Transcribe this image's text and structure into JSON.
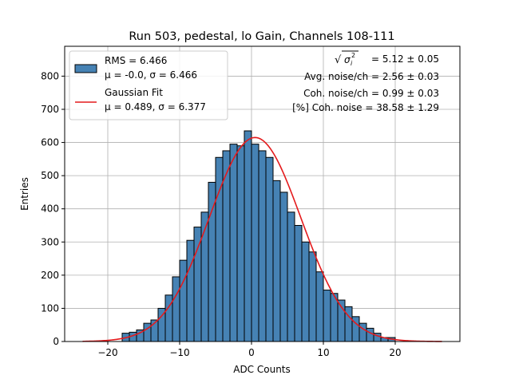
{
  "chart_data": {
    "type": "bar",
    "title": "Run 503, pedestal, lo Gain, Channels 108-111",
    "xlabel": "ADC Counts",
    "ylabel": "Entries",
    "xlim": [
      -26,
      29
    ],
    "ylim": [
      0,
      890
    ],
    "xticks": [
      -20,
      -10,
      0,
      10,
      20
    ],
    "yticks": [
      0,
      100,
      200,
      300,
      400,
      500,
      600,
      700,
      800
    ],
    "grid": true,
    "bin_width": 1,
    "bin_edges_first": -18,
    "hist_values": [
      25,
      28,
      35,
      55,
      65,
      100,
      140,
      195,
      245,
      305,
      345,
      390,
      480,
      555,
      575,
      595,
      590,
      635,
      595,
      575,
      555,
      485,
      450,
      390,
      350,
      300,
      270,
      210,
      155,
      145,
      125,
      105,
      75,
      55,
      40,
      25,
      12,
      12
    ],
    "fit": {
      "mu": 0.489,
      "sigma": 6.377,
      "amplitude": 615,
      "x_range": [
        -23.5,
        26.5
      ]
    },
    "legend": {
      "position": "upper-left",
      "entries": [
        {
          "line1": "RMS = 6.466",
          "line2": "μ = -0.0, σ = 6.466",
          "symbol": "patch"
        },
        {
          "line1": "Gaussian Fit",
          "line2": "μ = 0.489, σ = 6.377",
          "symbol": "line"
        }
      ]
    },
    "annotations": [
      {
        "id": "sigma-i",
        "rest": " = 5.12 ± 0.05"
      },
      {
        "id": "avg-noise",
        "text": "Avg. noise/ch = 2.56 ± 0.03"
      },
      {
        "id": "coh-noise",
        "text": "Coh. noise/ch = 0.99 ± 0.03"
      },
      {
        "id": "pct-coh",
        "text": "[%] Coh. noise = 38.58 ± 1.29"
      }
    ],
    "colors": {
      "bar": "#4682b4",
      "bar_edge": "#000000",
      "fit": "#e41a1c",
      "grid": "#b0b0b0"
    }
  }
}
